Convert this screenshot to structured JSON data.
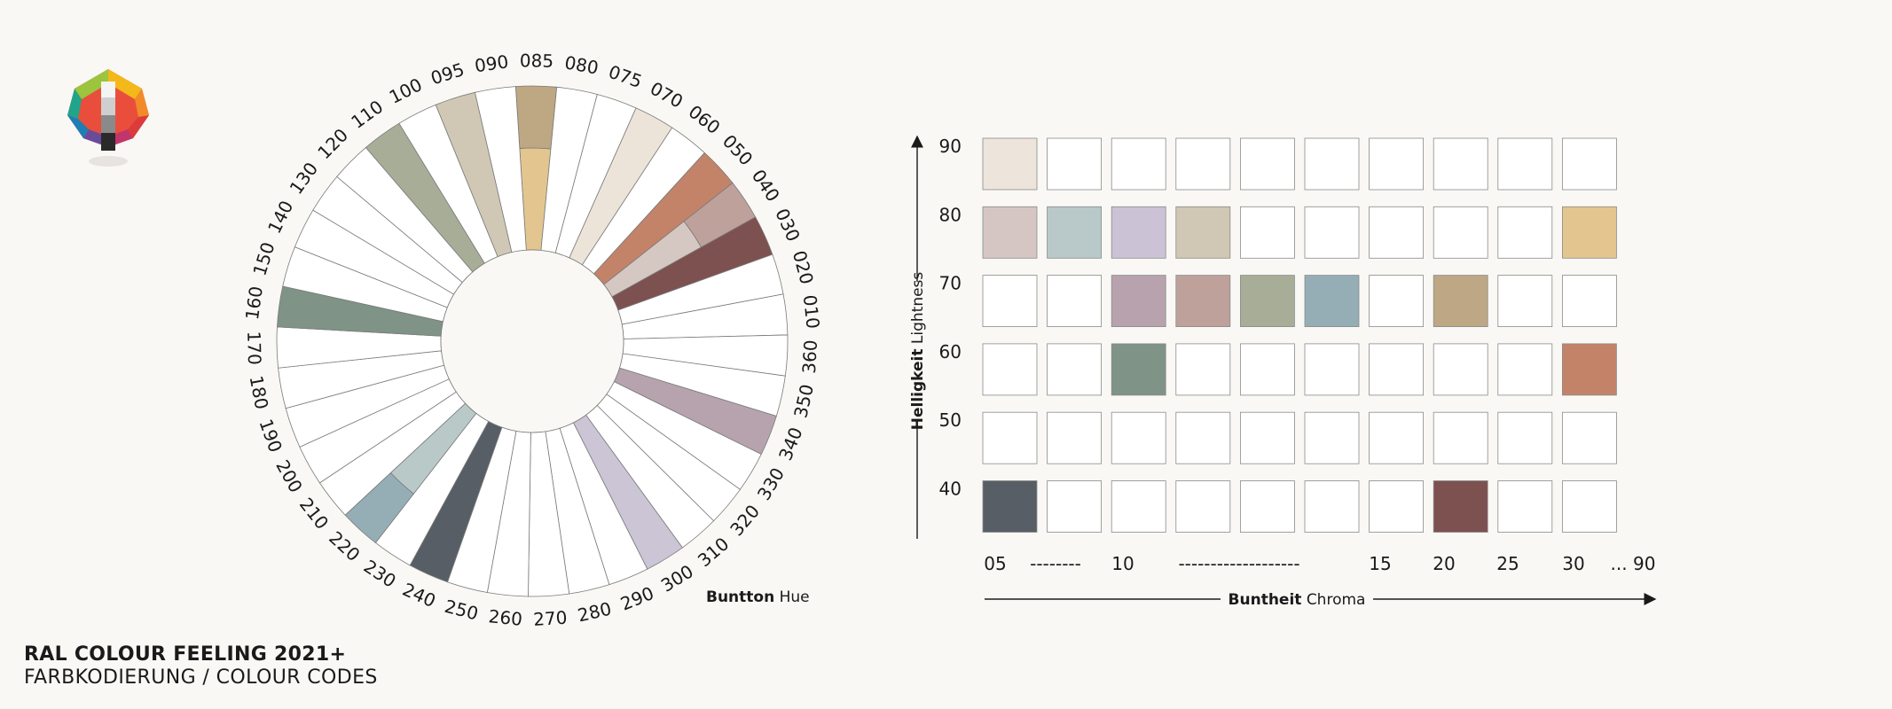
{
  "title": {
    "line1": "RAL COLOUR FEELING 2021+",
    "line2": "FARBKODIERUNG / COLOUR CODES"
  },
  "logo_icon": "ral-colour-solid-icon",
  "hue_axis": {
    "label_de": "Buntton",
    "label_en": "Hue"
  },
  "wheel": {
    "hue_labels": [
      "085",
      "080",
      "075",
      "070",
      "060",
      "050",
      "040",
      "030",
      "020",
      "010",
      "360",
      "350",
      "340",
      "330",
      "320",
      "310",
      "300",
      "290",
      "280",
      "270",
      "260",
      "250",
      "240",
      "230",
      "220",
      "210",
      "200",
      "190",
      "180",
      "170",
      "160",
      "150",
      "140",
      "130",
      "120",
      "110",
      "100",
      "095",
      "090"
    ],
    "colored_segments": [
      {
        "label": "085",
        "color": "#e3c68f",
        "outer_color": "#bea783",
        "split": true
      },
      {
        "label": "070",
        "color": "#ede4d9"
      },
      {
        "label": "050",
        "color": "#c38369"
      },
      {
        "label": "040",
        "color": "#d5c7c2",
        "outer_color": "#bea19b",
        "split": true
      },
      {
        "label": "030",
        "color": "#7d5150"
      },
      {
        "label": "340",
        "color": "#b7a3ae"
      },
      {
        "label": "300",
        "color": "#cbc5d6"
      },
      {
        "label": "240",
        "color": "#575e66"
      },
      {
        "label": "220",
        "color": "#b9c9c8",
        "outer_color": "#95aeb5",
        "split": true
      },
      {
        "label": "160",
        "color": "#7f9386"
      },
      {
        "label": "110",
        "color": "#a8ad98"
      },
      {
        "label": "095",
        "color": "#d0c8b5"
      }
    ]
  },
  "lightness_axis": {
    "label_de": "Helligkeit",
    "label_en": "Lightness"
  },
  "chroma_axis": {
    "label_de": "Buntheit",
    "label_en": "Chroma"
  },
  "grid": {
    "rows": [
      "90",
      "80",
      "70",
      "60",
      "50",
      "40"
    ],
    "columns": [
      "05",
      "10",
      "15",
      "20",
      "25",
      "30",
      "... 90"
    ],
    "column_dashes": [
      "--------",
      "-------------------"
    ],
    "filled_cells": [
      {
        "row": "90",
        "col": 1,
        "color": "#ede4dc"
      },
      {
        "row": "80",
        "col": 1,
        "color": "#d5c6c4"
      },
      {
        "row": "80",
        "col": 2,
        "color": "#b9c9ca"
      },
      {
        "row": "80",
        "col": 3,
        "color": "#cbc2d6"
      },
      {
        "row": "80",
        "col": 4,
        "color": "#d0c8b4"
      },
      {
        "row": "80",
        "col": 10,
        "color": "#e3c68f"
      },
      {
        "row": "70",
        "col": 3,
        "color": "#b7a2ae"
      },
      {
        "row": "70",
        "col": 4,
        "color": "#bea19b"
      },
      {
        "row": "70",
        "col": 5,
        "color": "#a8ad97"
      },
      {
        "row": "70",
        "col": 6,
        "color": "#95aeb6"
      },
      {
        "row": "70",
        "col": 8,
        "color": "#bea784"
      },
      {
        "row": "60",
        "col": 3,
        "color": "#7f9387"
      },
      {
        "row": "60",
        "col": 10,
        "color": "#c38369"
      },
      {
        "row": "40",
        "col": 1,
        "color": "#575e66"
      },
      {
        "row": "40",
        "col": 8,
        "color": "#7d5150"
      }
    ]
  }
}
